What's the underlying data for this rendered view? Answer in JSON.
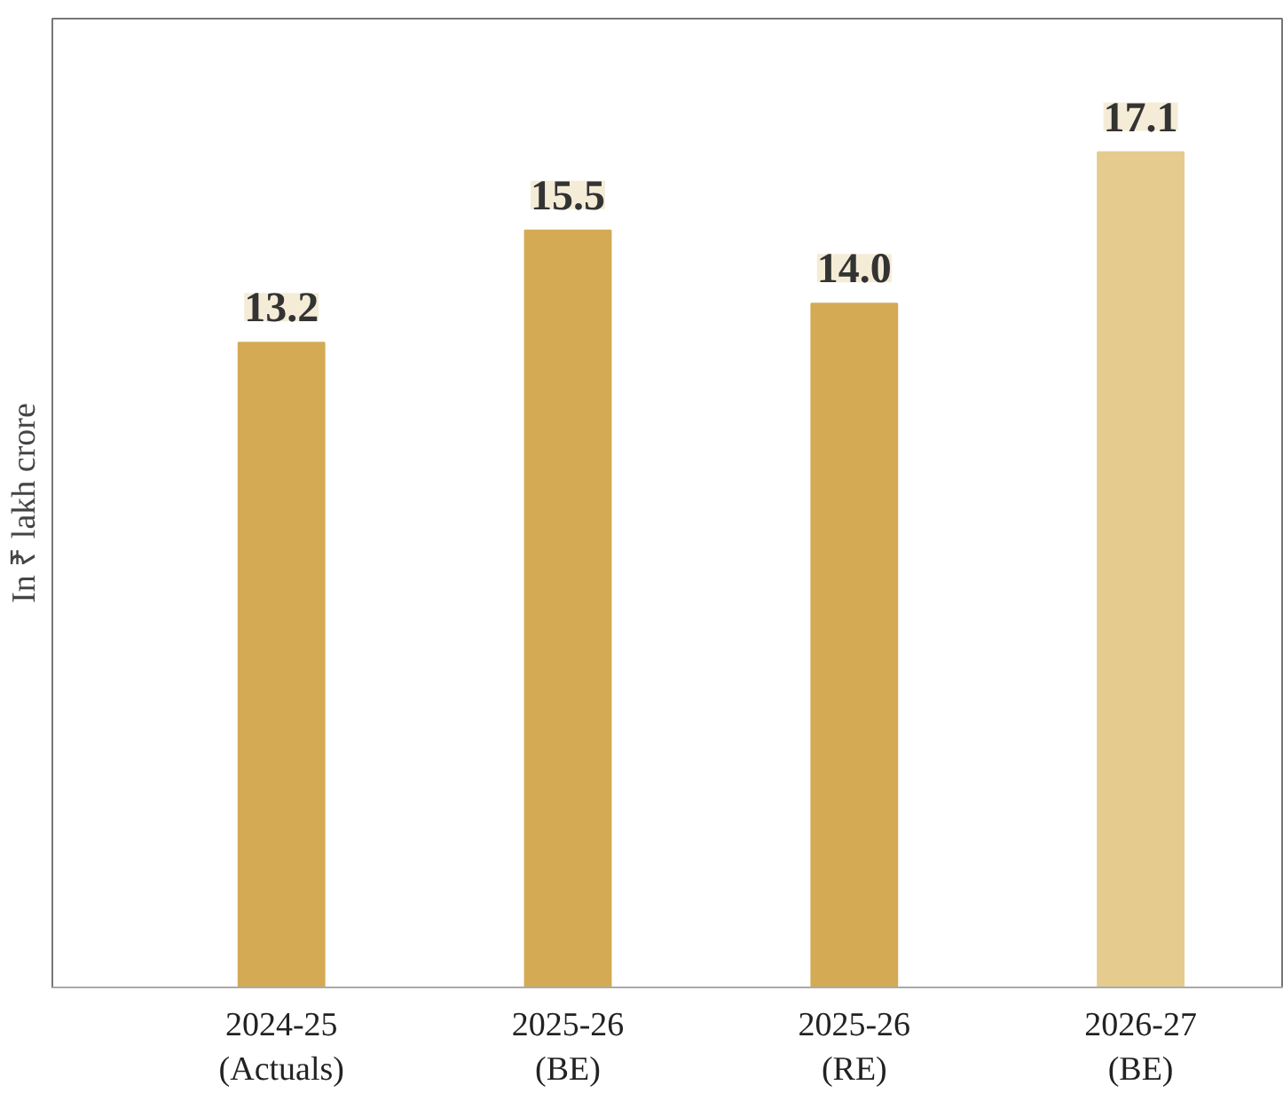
{
  "chart_data": {
    "type": "bar",
    "ylabel": "In ₹ lakh crore",
    "categories": [
      "2024-25\n(Actuals)",
      "2025-26\n(BE)",
      "2025-26\n(RE)",
      "2026-27\n(BE)"
    ],
    "values": [
      13.2,
      15.5,
      14.0,
      17.1
    ],
    "colors": [
      "#d4aa55",
      "#d4aa55",
      "#d4aa55",
      "#e6cb8e"
    ],
    "value_labels": [
      "13.2",
      "15.5",
      "14.0",
      "17.1"
    ],
    "grid": false
  }
}
